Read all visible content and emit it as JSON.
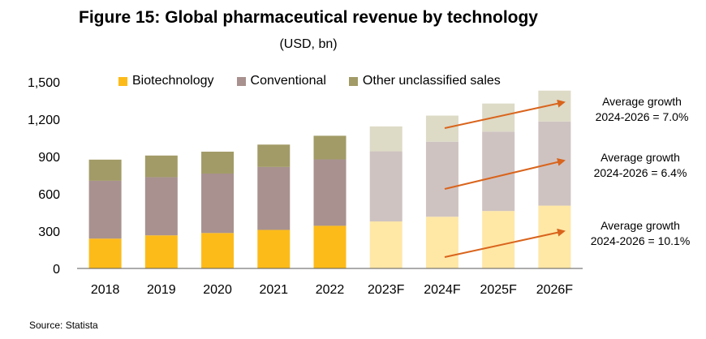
{
  "chart_data": {
    "type": "bar",
    "stacked": true,
    "title": "Figure 15: Global pharmaceutical revenue by technology",
    "subtitle": "(USD, bn)",
    "categories": [
      "2018",
      "2019",
      "2020",
      "2021",
      "2022",
      "2023F",
      "2024F",
      "2025F",
      "2026F"
    ],
    "forecast_from_index": 5,
    "ylim": [
      0,
      1500
    ],
    "yticks": [
      "0",
      "300",
      "600",
      "900",
      "1,200",
      "1,500"
    ],
    "ytick_values": [
      0,
      300,
      600,
      900,
      1200,
      1500
    ],
    "grid": false,
    "legend_position": "top",
    "series": [
      {
        "name": "Biotechnology",
        "values": [
          240,
          266,
          285,
          310,
          343,
          378,
          416,
          462,
          505
        ],
        "color": "#FDBB1A",
        "forecast_color": "#FFE7A6"
      },
      {
        "name": "Conventional",
        "values": [
          465,
          468,
          478,
          506,
          534,
          564,
          603,
          638,
          677
        ],
        "color": "#A8918F",
        "forecast_color": "#CFC3C1"
      },
      {
        "name": "Other unclassified sales",
        "values": [
          170,
          174,
          176,
          180,
          190,
          200,
          210,
          226,
          248
        ],
        "color": "#A29B67",
        "forecast_color": "#DDDAC6"
      }
    ],
    "annotations": [
      {
        "line1": "Average growth",
        "line2": "2024-2026 = 7.0%"
      },
      {
        "line1": "Average growth",
        "line2": "2024-2026 = 6.4%"
      },
      {
        "line1": "Average growth",
        "line2": "2024-2026 = 10.1%"
      }
    ],
    "arrow_color": "#D9641C"
  },
  "source": "Source: Statista"
}
